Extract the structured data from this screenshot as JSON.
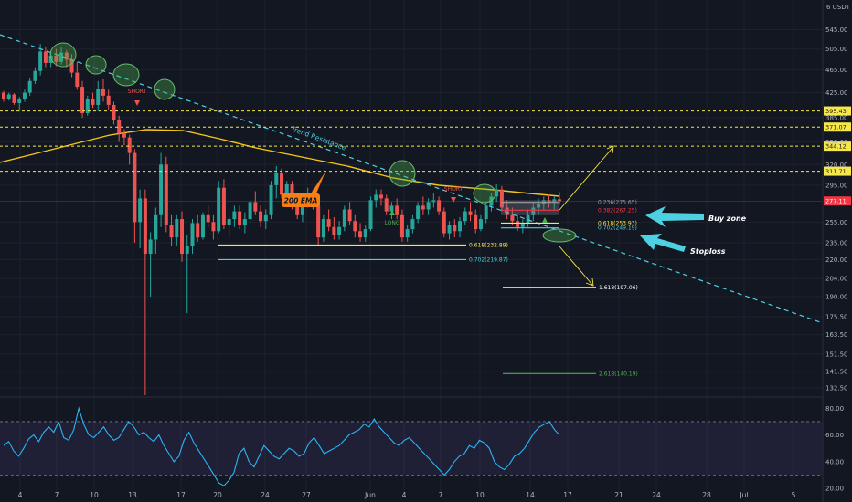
{
  "chart_data": {
    "type": "candlestick",
    "currency_label": "6 USDT",
    "price_axis": {
      "ticks": [
        "545.00",
        "505.00",
        "465.00",
        "425.00",
        "385.00",
        "350.00",
        "320.00",
        "295.00",
        "255.00",
        "235.00",
        "220.00",
        "204.00",
        "190.00",
        "175.50",
        "163.50",
        "151.50",
        "141.50",
        "132.50"
      ],
      "range": [
        132.5,
        560
      ]
    },
    "rsi_axis": {
      "ticks": [
        "80.00",
        "60.00",
        "40.00",
        "20.00"
      ],
      "range": [
        20,
        85
      ],
      "upper_band": 70,
      "lower_band": 30
    },
    "x_ticks": [
      "4",
      "7",
      "10",
      "13",
      "17",
      "20",
      "24",
      "27",
      "Jun",
      "4",
      "7",
      "10",
      "14",
      "17",
      "21",
      "24",
      "28",
      "Jul",
      "5"
    ],
    "price_tags": [
      {
        "label": "395.43",
        "value": 395.43,
        "color": "#f7e84a"
      },
      {
        "label": "371.07",
        "value": 371.07,
        "color": "#f7e84a"
      },
      {
        "label": "344.12",
        "value": 344.12,
        "color": "#f7e84a"
      },
      {
        "label": "311.71",
        "value": 311.71,
        "color": "#f7e84a"
      },
      {
        "label": "277.11",
        "value": 277.11,
        "color": "#f23645"
      }
    ],
    "fib_levels": [
      {
        "label": "0.236(275.65)",
        "value": 275.65,
        "color": "#9e9e9e"
      },
      {
        "label": "0.382(267.25)",
        "value": 267.25,
        "color": "#f23645"
      },
      {
        "label": "0.618(253.93)",
        "value": 253.93,
        "color": "#f7e84a"
      },
      {
        "label": "0.702(249.19)",
        "value": 249.19,
        "color": "#4dd0e1"
      },
      {
        "label": "0.618(232.89)",
        "value": 232.89,
        "color": "#f7e84a"
      },
      {
        "label": "0.702(219.87)",
        "value": 219.87,
        "color": "#4dd0e1"
      },
      {
        "label": "1.618(197.06)",
        "value": 197.06,
        "color": "#ffffff"
      },
      {
        "label": "2.618(140.19)",
        "value": 140.19,
        "color": "#4caf50"
      }
    ],
    "annotations": {
      "trend_resistance": "Trend Resistance",
      "ema": "200 EMA",
      "buy_zone": "Buy zone",
      "stoploss": "Stoploss",
      "short_1": "SHORT",
      "short_2": "SHORT",
      "long": "LONG"
    },
    "rsi": [
      52,
      55,
      48,
      44,
      50,
      57,
      60,
      55,
      62,
      66,
      62,
      70,
      58,
      56,
      64,
      80,
      68,
      60,
      58,
      62,
      66,
      60,
      56,
      58,
      64,
      70,
      66,
      60,
      62,
      58,
      55,
      60,
      52,
      46,
      40,
      44,
      56,
      62,
      54,
      48,
      42,
      36,
      30,
      24,
      22,
      26,
      32,
      46,
      50,
      40,
      36,
      44,
      52,
      48,
      44,
      42,
      46,
      50,
      48,
      44,
      46,
      54,
      58,
      52,
      46,
      48,
      50,
      52,
      56,
      60,
      62,
      64,
      68,
      66,
      72,
      66,
      62,
      58,
      54,
      52,
      56,
      58,
      54,
      50,
      46,
      42,
      38,
      34,
      30,
      34,
      40,
      44,
      46,
      52,
      50,
      56,
      54,
      50,
      40,
      36,
      34,
      38,
      44,
      46,
      50,
      56,
      62,
      66,
      68,
      70,
      64,
      60
    ],
    "candles": [
      [
        425,
        428,
        410,
        415
      ],
      [
        415,
        425,
        412,
        422
      ],
      [
        422,
        424,
        405,
        408
      ],
      [
        408,
        418,
        395,
        414
      ],
      [
        414,
        430,
        410,
        425
      ],
      [
        425,
        450,
        420,
        445
      ],
      [
        445,
        470,
        440,
        463
      ],
      [
        463,
        515,
        455,
        500
      ],
      [
        500,
        508,
        470,
        478
      ],
      [
        478,
        500,
        470,
        492
      ],
      [
        492,
        505,
        472,
        480
      ],
      [
        480,
        510,
        475,
        498
      ],
      [
        498,
        503,
        470,
        484
      ],
      [
        484,
        495,
        452,
        460
      ],
      [
        460,
        480,
        430,
        435
      ],
      [
        435,
        445,
        385,
        392
      ],
      [
        392,
        420,
        388,
        415
      ],
      [
        415,
        425,
        400,
        405
      ],
      [
        405,
        445,
        395,
        432
      ],
      [
        432,
        448,
        410,
        420
      ],
      [
        420,
        430,
        398,
        405
      ],
      [
        405,
        410,
        375,
        382
      ],
      [
        382,
        388,
        350,
        362
      ],
      [
        362,
        368,
        345,
        356
      ],
      [
        356,
        360,
        320,
        335
      ],
      [
        335,
        340,
        235,
        255
      ],
      [
        255,
        290,
        230,
        280
      ],
      [
        280,
        290,
        205,
        225
      ],
      [
        225,
        245,
        190,
        238
      ],
      [
        238,
        270,
        225,
        262
      ],
      [
        262,
        335,
        250,
        320
      ],
      [
        320,
        330,
        245,
        252
      ],
      [
        252,
        262,
        232,
        240
      ],
      [
        240,
        262,
        232,
        258
      ],
      [
        258,
        266,
        218,
        225
      ],
      [
        225,
        242,
        178,
        232
      ],
      [
        232,
        258,
        225,
        254
      ],
      [
        254,
        262,
        236,
        240
      ],
      [
        240,
        265,
        238,
        262
      ],
      [
        262,
        272,
        250,
        255
      ],
      [
        255,
        262,
        238,
        246
      ],
      [
        246,
        300,
        244,
        292
      ],
      [
        292,
        302,
        248,
        252
      ],
      [
        252,
        262,
        240,
        258
      ],
      [
        258,
        272,
        250,
        266
      ],
      [
        266,
        272,
        248,
        252
      ],
      [
        252,
        265,
        244,
        258
      ],
      [
        258,
        280,
        252,
        276
      ],
      [
        276,
        288,
        262,
        266
      ],
      [
        266,
        272,
        250,
        256
      ],
      [
        256,
        268,
        248,
        262
      ],
      [
        262,
        300,
        258,
        295
      ],
      [
        295,
        318,
        280,
        310
      ],
      [
        310,
        315,
        280,
        284
      ],
      [
        284,
        300,
        276,
        296
      ],
      [
        296,
        300,
        268,
        272
      ],
      [
        272,
        280,
        258,
        262
      ],
      [
        262,
        284,
        255,
        280
      ],
      [
        280,
        292,
        270,
        286
      ],
      [
        286,
        290,
        268,
        272
      ],
      [
        272,
        276,
        232,
        240
      ],
      [
        240,
        262,
        236,
        258
      ],
      [
        258,
        268,
        246,
        250
      ],
      [
        250,
        260,
        238,
        242
      ],
      [
        242,
        256,
        238,
        250
      ],
      [
        250,
        272,
        246,
        268
      ],
      [
        268,
        276,
        252,
        256
      ],
      [
        256,
        262,
        240,
        246
      ],
      [
        246,
        254,
        236,
        240
      ],
      [
        240,
        252,
        236,
        248
      ],
      [
        248,
        282,
        246,
        278
      ],
      [
        278,
        290,
        270,
        284
      ],
      [
        284,
        290,
        272,
        280
      ],
      [
        280,
        284,
        262,
        266
      ],
      [
        266,
        276,
        258,
        272
      ],
      [
        272,
        280,
        258,
        262
      ],
      [
        262,
        268,
        236,
        240
      ],
      [
        240,
        252,
        236,
        248
      ],
      [
        248,
        262,
        244,
        258
      ],
      [
        258,
        276,
        254,
        272
      ],
      [
        272,
        282,
        262,
        268
      ],
      [
        268,
        280,
        262,
        276
      ],
      [
        276,
        286,
        270,
        278
      ],
      [
        278,
        282,
        262,
        266
      ],
      [
        266,
        270,
        240,
        244
      ],
      [
        244,
        256,
        238,
        252
      ],
      [
        252,
        258,
        240,
        246
      ],
      [
        246,
        260,
        240,
        256
      ],
      [
        256,
        270,
        252,
        266
      ],
      [
        266,
        276,
        256,
        262
      ],
      [
        262,
        268,
        244,
        248
      ],
      [
        248,
        262,
        246,
        258
      ],
      [
        258,
        276,
        254,
        272
      ],
      [
        272,
        286,
        266,
        282
      ],
      [
        282,
        296,
        276,
        290
      ],
      [
        290,
        294,
        266,
        270
      ],
      [
        270,
        278,
        258,
        262
      ],
      [
        262,
        270,
        252,
        256
      ],
      [
        256,
        262,
        246,
        250
      ],
      [
        250,
        258,
        244,
        254
      ],
      [
        254,
        268,
        250,
        262
      ],
      [
        262,
        276,
        256,
        270
      ],
      [
        270,
        280,
        262,
        274
      ],
      [
        274,
        282,
        268,
        278
      ],
      [
        278,
        284,
        270,
        276
      ],
      [
        276,
        282,
        268,
        279
      ],
      [
        279,
        287,
        273,
        277
      ]
    ]
  }
}
